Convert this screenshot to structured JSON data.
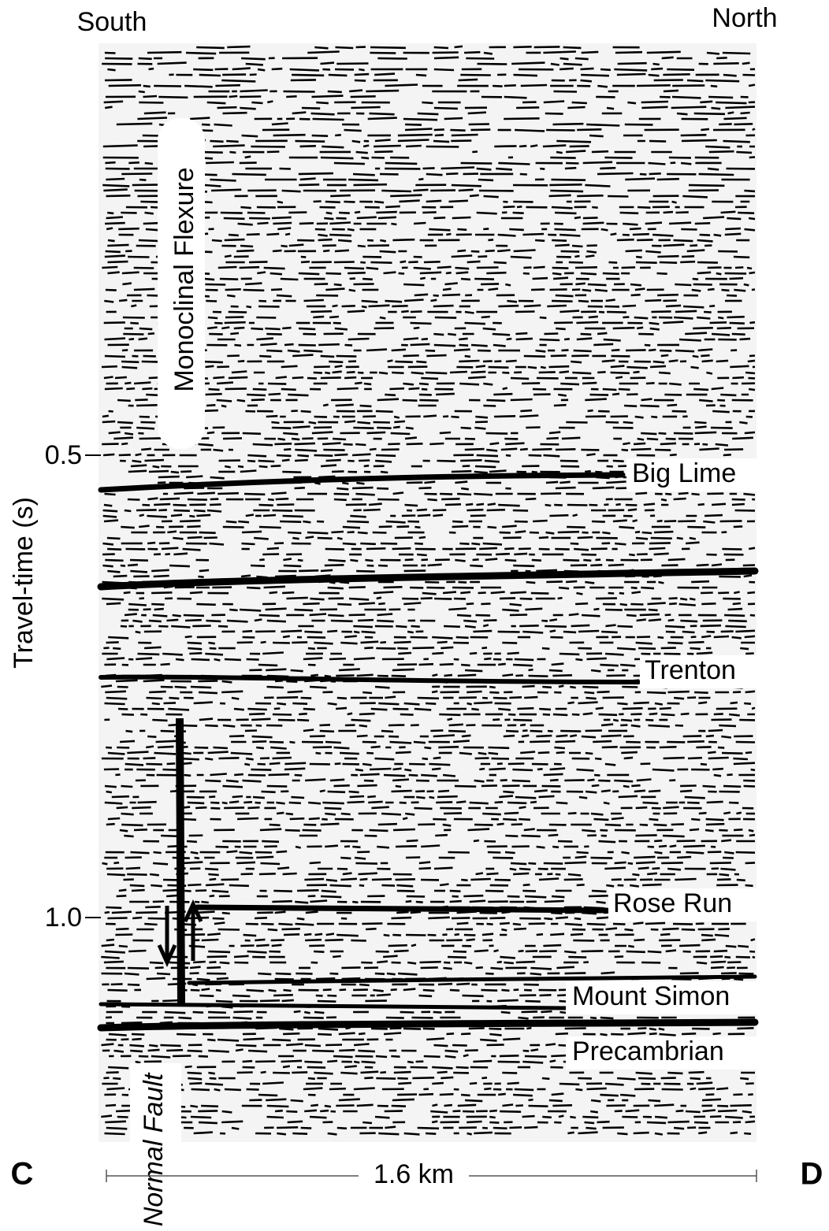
{
  "header": {
    "left": "South",
    "right": "North"
  },
  "axis": {
    "label": "Travel-time (s)",
    "ticks": [
      "0.5",
      "1.0"
    ]
  },
  "horizons": [
    "Big Lime",
    "Trenton",
    "Rose Run",
    "Mount Simon",
    "Precambrian"
  ],
  "annotations": {
    "flexure": "Monoclinal Flexure",
    "fault": "Normal Fault"
  },
  "scale": {
    "label": "1.6 km"
  },
  "panel": {
    "left": "C",
    "right": "D"
  }
}
